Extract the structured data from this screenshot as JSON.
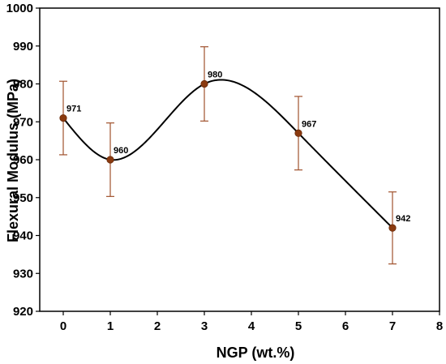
{
  "chart_data": {
    "type": "line",
    "title": "",
    "xlabel": "NGP (wt.%)",
    "ylabel": "Flexural Modulus (MPa)",
    "xlim": [
      -0.5,
      8
    ],
    "ylim": [
      920,
      1000
    ],
    "x_ticks": [
      0,
      1,
      2,
      3,
      4,
      5,
      6,
      7,
      8
    ],
    "y_ticks": [
      920,
      930,
      940,
      950,
      960,
      970,
      980,
      990,
      1000
    ],
    "grid": false,
    "legend": "none",
    "series": [
      {
        "x": [
          0,
          1,
          3,
          5,
          7
        ],
        "y": [
          971,
          960,
          980,
          967,
          942
        ],
        "error": [
          9.7,
          9.7,
          9.8,
          9.7,
          9.5
        ],
        "data_labels": [
          "971",
          "960",
          "980",
          "967",
          "942"
        ],
        "curve": "smooth spline",
        "marker_color": "#8b3a0f",
        "error_bar_color": "#a0522d",
        "line_color": "#000000"
      }
    ]
  }
}
